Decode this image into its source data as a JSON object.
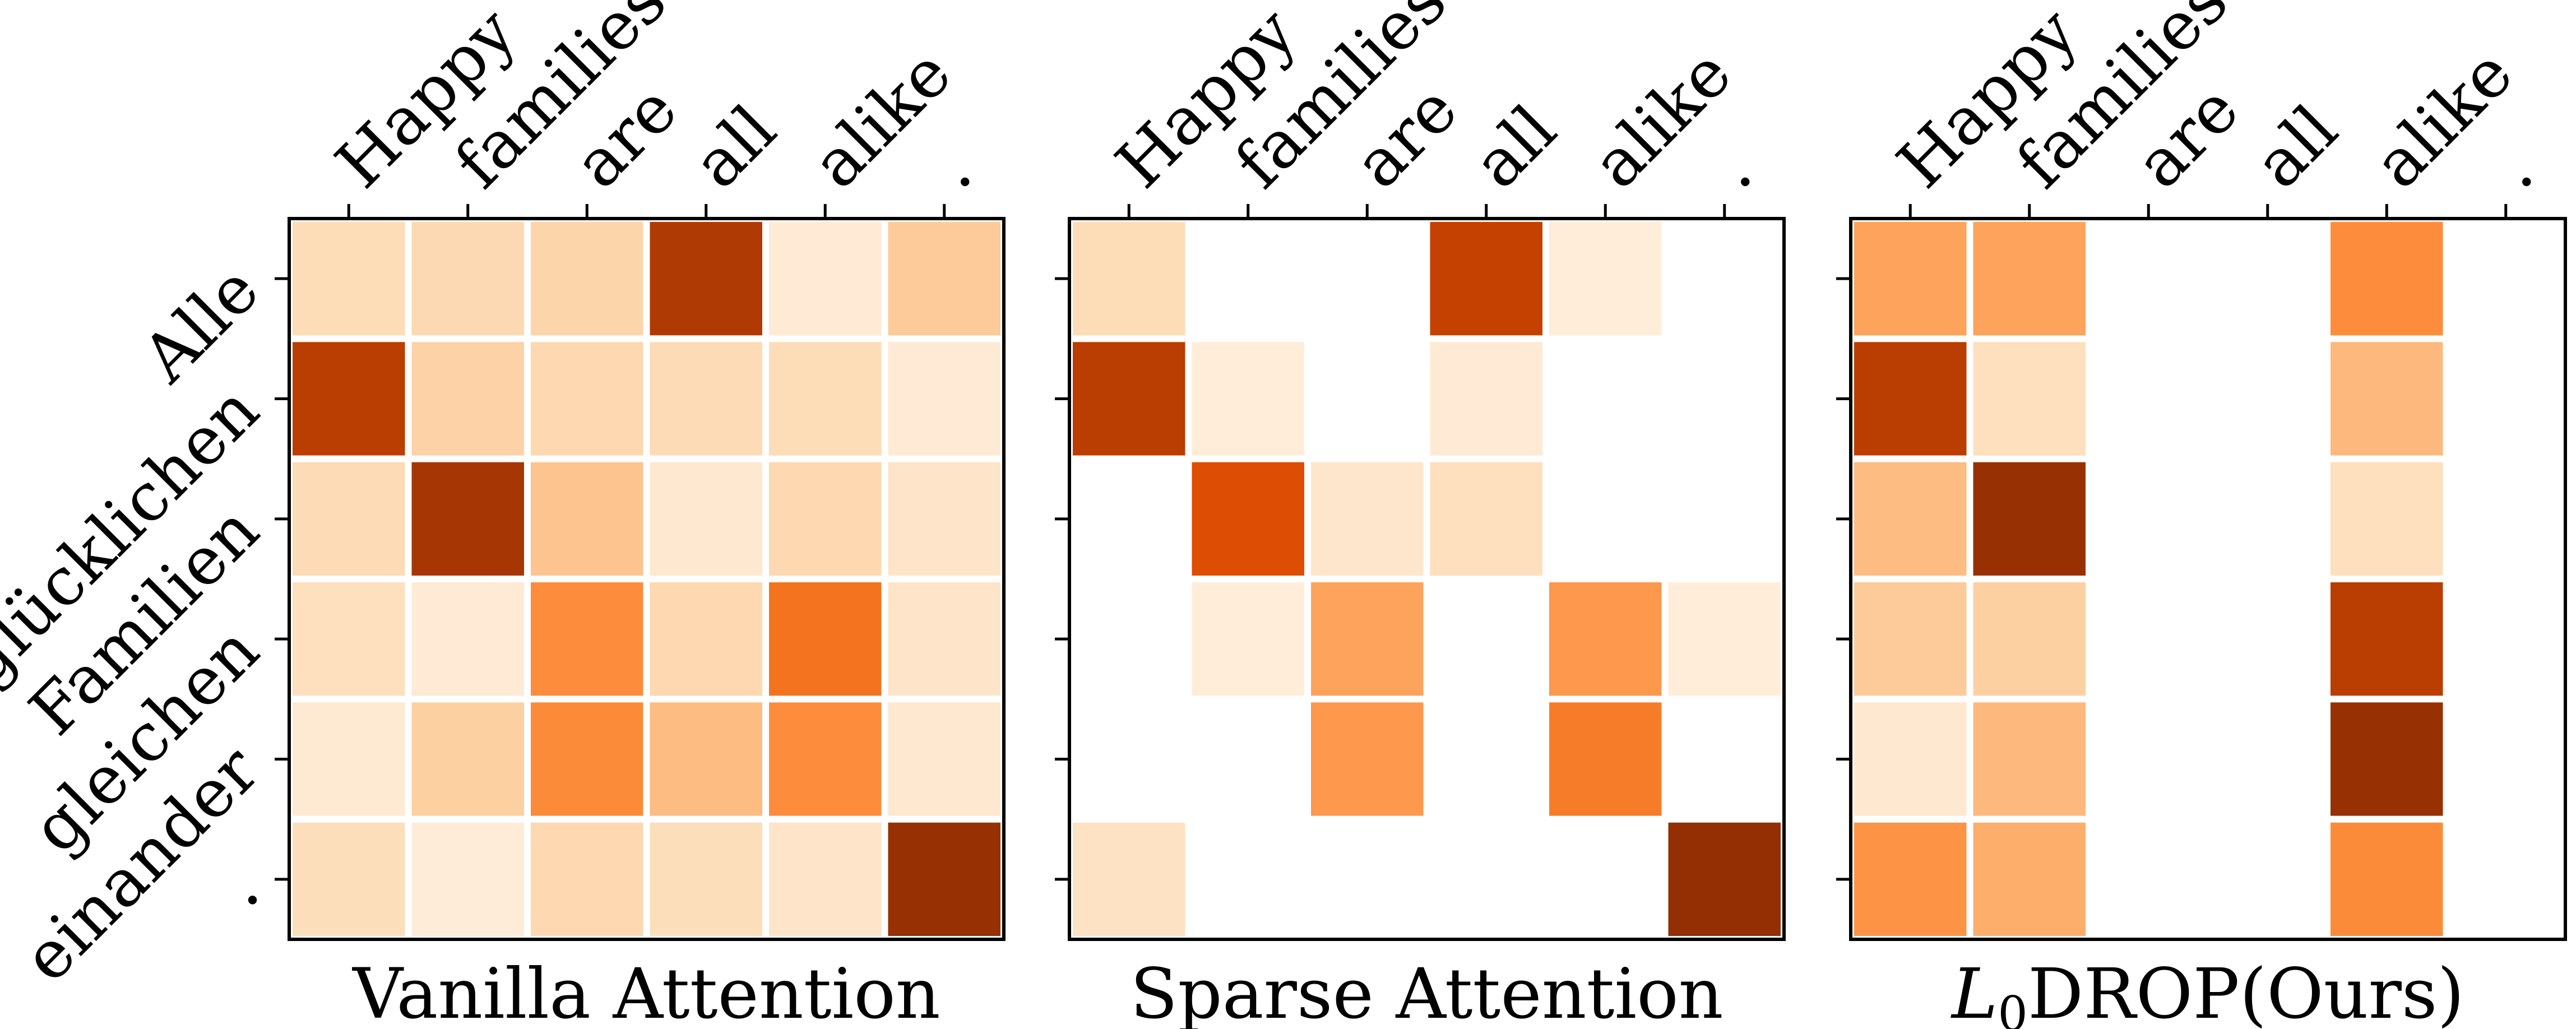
{
  "chart_data": [
    {
      "type": "heatmap",
      "title": "Vanilla Attention",
      "x_tokens": [
        "Happy",
        "families",
        "are",
        "all",
        "alike",
        "."
      ],
      "y_tokens": [
        "Alle",
        "glücklichen",
        "Familien",
        "gleichen",
        "einander",
        "."
      ],
      "values": [
        [
          0.22,
          0.24,
          0.26,
          0.9,
          0.12,
          0.3
        ],
        [
          0.88,
          0.27,
          0.25,
          0.23,
          0.22,
          0.12
        ],
        [
          0.23,
          0.92,
          0.32,
          0.14,
          0.25,
          0.16
        ],
        [
          0.2,
          0.12,
          0.55,
          0.25,
          0.66,
          0.16
        ],
        [
          0.13,
          0.28,
          0.56,
          0.35,
          0.55,
          0.14
        ],
        [
          0.21,
          0.11,
          0.25,
          0.21,
          0.16,
          0.95
        ]
      ],
      "x_label_colors": [
        "#000000",
        "#000000",
        "#000000",
        "#000000",
        "#000000",
        "#000000"
      ],
      "grid": false
    },
    {
      "type": "heatmap",
      "title": "Sparse Attention",
      "x_tokens": [
        "Happy",
        "families",
        "are",
        "all",
        "alike",
        "."
      ],
      "y_tokens": [
        "Alle",
        "glücklichen",
        "Familien",
        "gleichen",
        "einander",
        "."
      ],
      "values": [
        [
          0.22,
          0,
          0,
          0.86,
          0.1,
          0
        ],
        [
          0.88,
          0.1,
          0,
          0.12,
          0,
          0
        ],
        [
          0,
          0.8,
          0.15,
          0.2,
          0,
          0
        ],
        [
          0,
          0.1,
          0.45,
          0,
          0.5,
          0.1
        ],
        [
          0,
          0,
          0.5,
          0,
          0.62,
          0
        ],
        [
          0.18,
          0,
          0,
          0,
          0,
          0.96
        ]
      ],
      "x_label_colors": [
        "#000000",
        "#000000",
        "#000000",
        "#000000",
        "#000000",
        "#000000"
      ],
      "grid": false
    },
    {
      "type": "heatmap",
      "title_main": "L",
      "title_sub": "0",
      "title_caps": "DROP",
      "title_tail": "(Ours)",
      "x_tokens": [
        "Happy",
        "families",
        "are",
        "all",
        "alike",
        "."
      ],
      "y_tokens": [
        "Alle",
        "glücklichen",
        "Familien",
        "gleichen",
        "einander",
        "."
      ],
      "values": [
        [
          0.45,
          0.45,
          0,
          0,
          0.55,
          0
        ],
        [
          0.88,
          0.2,
          0,
          0,
          0.36,
          0
        ],
        [
          0.35,
          0.95,
          0,
          0,
          0.2,
          0
        ],
        [
          0.3,
          0.28,
          0,
          0,
          0.88,
          0
        ],
        [
          0.14,
          0.36,
          0,
          0,
          0.95,
          0
        ],
        [
          0.52,
          0.4,
          0,
          0,
          0.56,
          0
        ]
      ],
      "x_label_colors": [
        "#000000",
        "#000000",
        "#ff0000",
        "#ff0000",
        "#000000",
        "#ff0000"
      ],
      "grid": false
    }
  ]
}
